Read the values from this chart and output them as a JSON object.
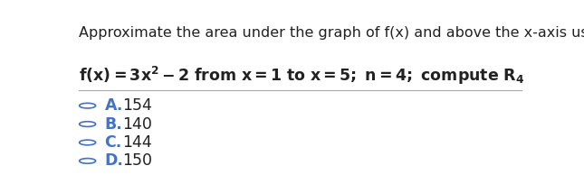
{
  "title_line": "Approximate the area under the graph of f(x) and above the x-axis using n right rectangles.",
  "options": [
    {
      "letter": "A.",
      "value": "154"
    },
    {
      "letter": "B.",
      "value": "140"
    },
    {
      "letter": "C.",
      "value": "144"
    },
    {
      "letter": "D.",
      "value": "150"
    }
  ],
  "circle_color": "#4472C4",
  "letter_color": "#4472C4",
  "text_color": "#222222",
  "bg_color": "#ffffff",
  "title_fontsize": 11.5,
  "formula_fontsize": 12.5,
  "option_fontsize": 12.5,
  "divider_color": "#aaaaaa"
}
